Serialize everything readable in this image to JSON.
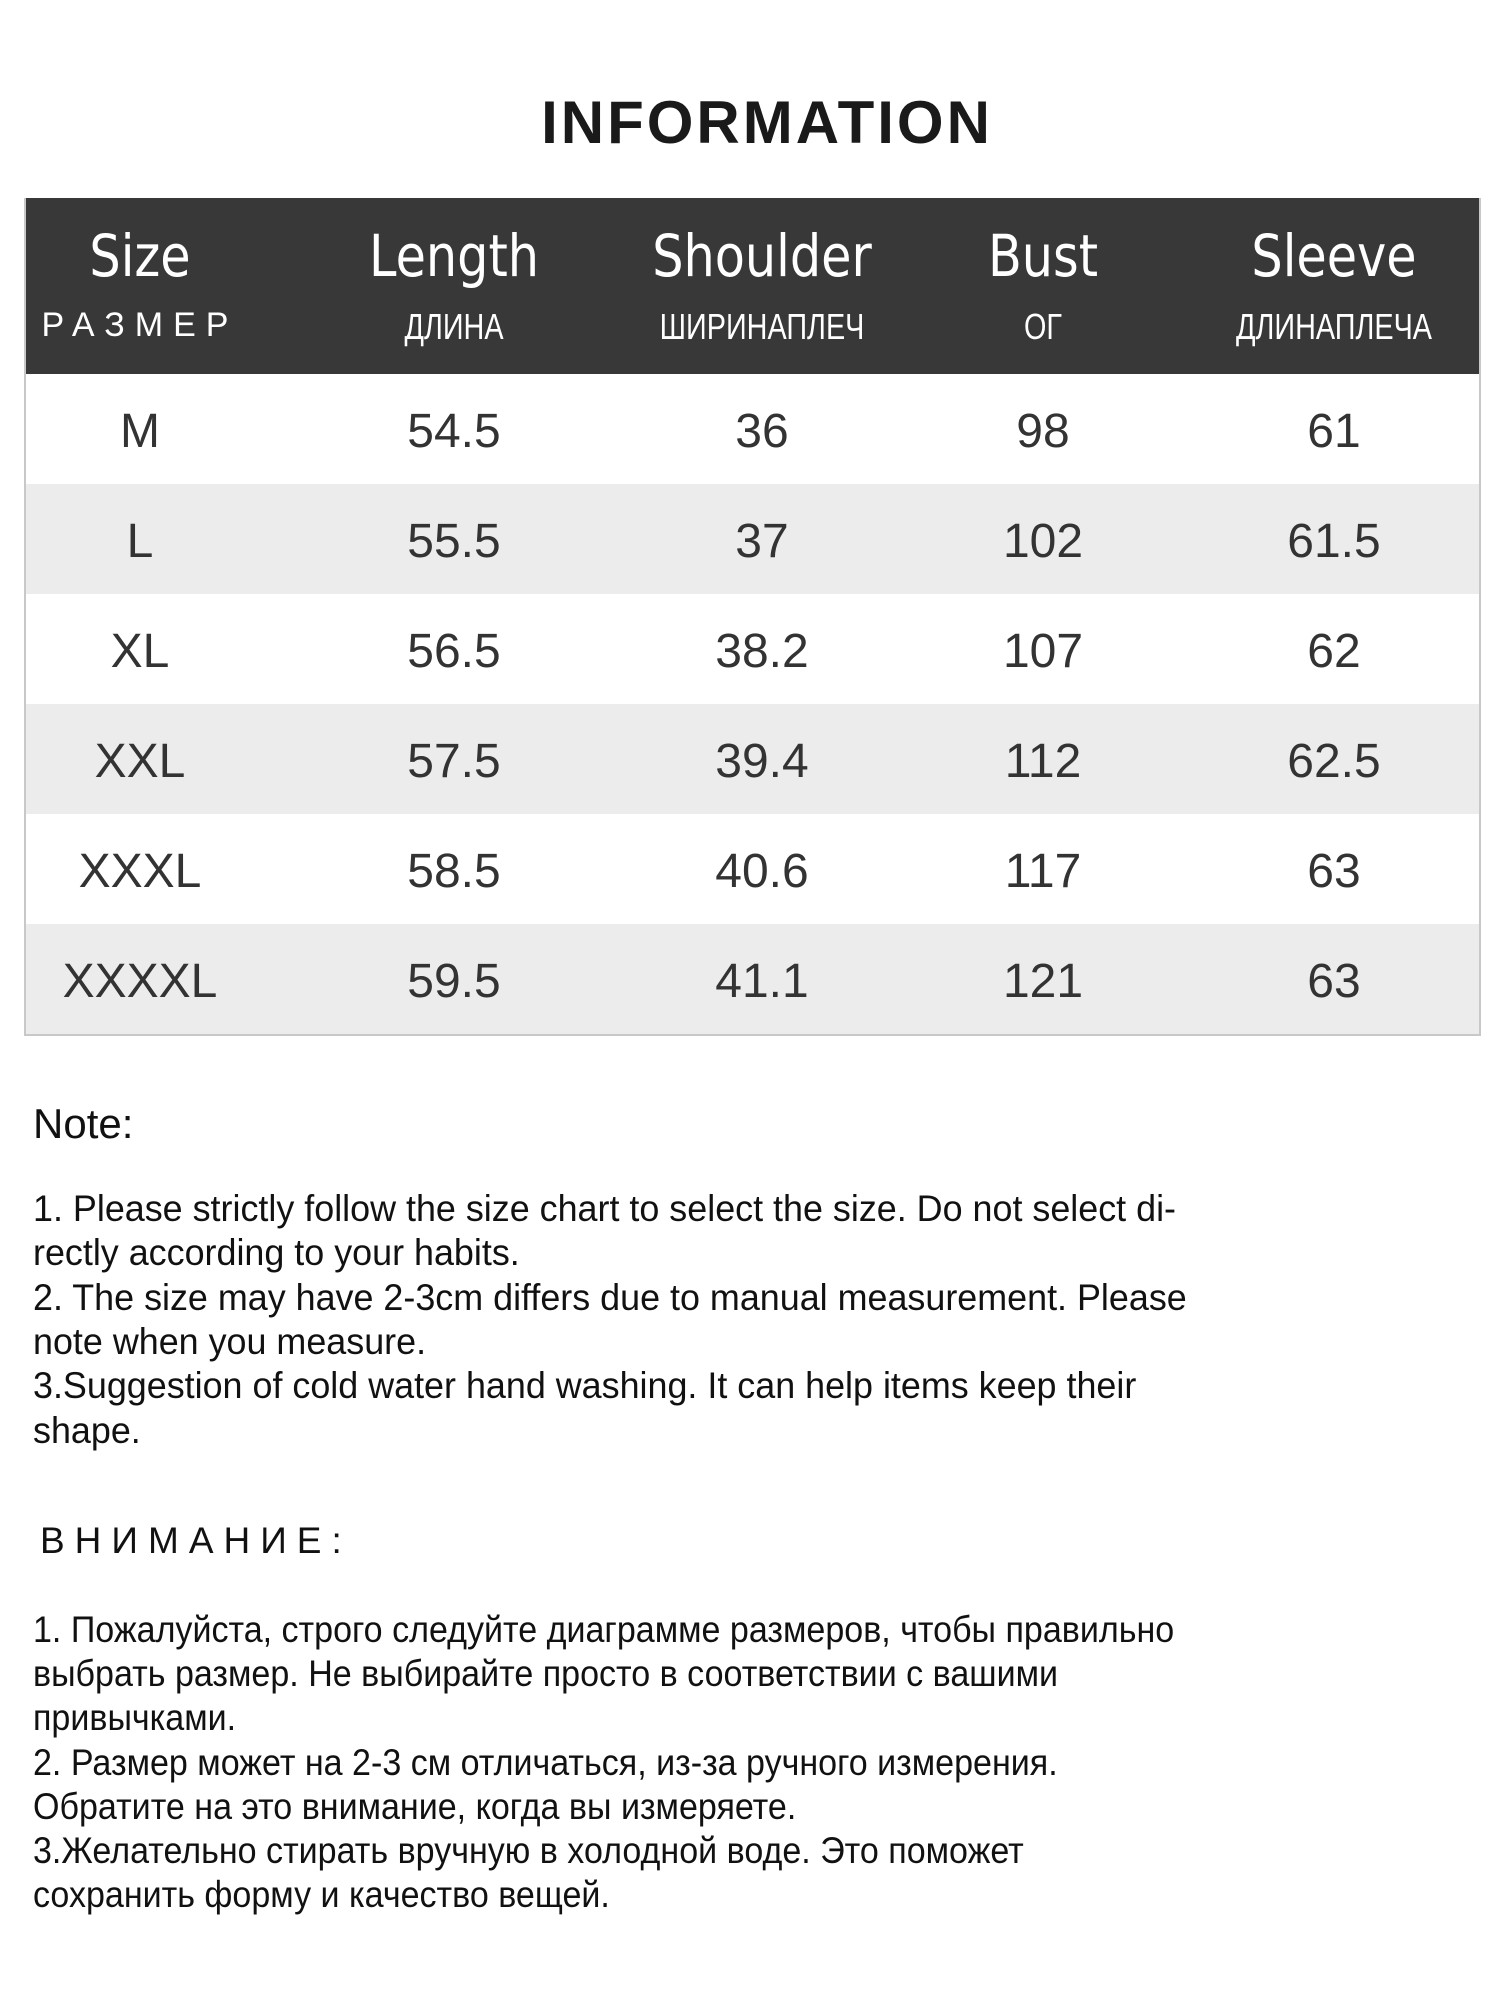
{
  "title": "INFORMATION",
  "table": {
    "headers": [
      {
        "en": "Size",
        "ru": "РАЗМЕР"
      },
      {
        "en": "Length",
        "ru": "ДЛИНА"
      },
      {
        "en": "Shoulder",
        "ru": "ШИРИНАПЛЕЧ"
      },
      {
        "en": "Bust",
        "ru": "ОГ"
      },
      {
        "en": "Sleeve",
        "ru": "ДЛИНАПЛЕЧА"
      }
    ],
    "rows": [
      [
        "M",
        "54.5",
        "36",
        "98",
        "61"
      ],
      [
        "L",
        "55.5",
        "37",
        "102",
        "61.5"
      ],
      [
        "XL",
        "56.5",
        "38.2",
        "107",
        "62"
      ],
      [
        "XXL",
        "57.5",
        "39.4",
        "112",
        "62.5"
      ],
      [
        "XXXL",
        "58.5",
        "40.6",
        "117",
        "63"
      ],
      [
        "XXXXL",
        "59.5",
        "41.1",
        "121",
        "63"
      ]
    ]
  },
  "note": {
    "heading": "Note:",
    "lines": [
      "1. Please strictly follow the size chart  to select the size. Do not select di-",
      "rectly according to your habits.",
      "2. The size may have 2-3cm differs due to manual measurement. Please",
      "note when you measure.",
      "3.Suggestion of cold water hand washing. It can help items keep their",
      "shape."
    ]
  },
  "ru_note": {
    "heading": "ВНИМАНИЕ:",
    "lines": [
      "1. Пожалуйста, строго следуйте диаграмме размеров, чтобы правильно",
      "выбрать размер. Не выбирайте просто в соответствии с вашими",
      "привычками.",
      "2. Размер может на 2-3 см отличаться, из-за ручного измерения.",
      "Обратите на это внимание, когда вы измеряете.",
      "3.Желательно стирать вручную в холодной воде. Это поможет",
      "сохранить форму и качество вещей."
    ]
  },
  "colors": {
    "header_bg": "#383838",
    "alt_row": "#ececec"
  }
}
